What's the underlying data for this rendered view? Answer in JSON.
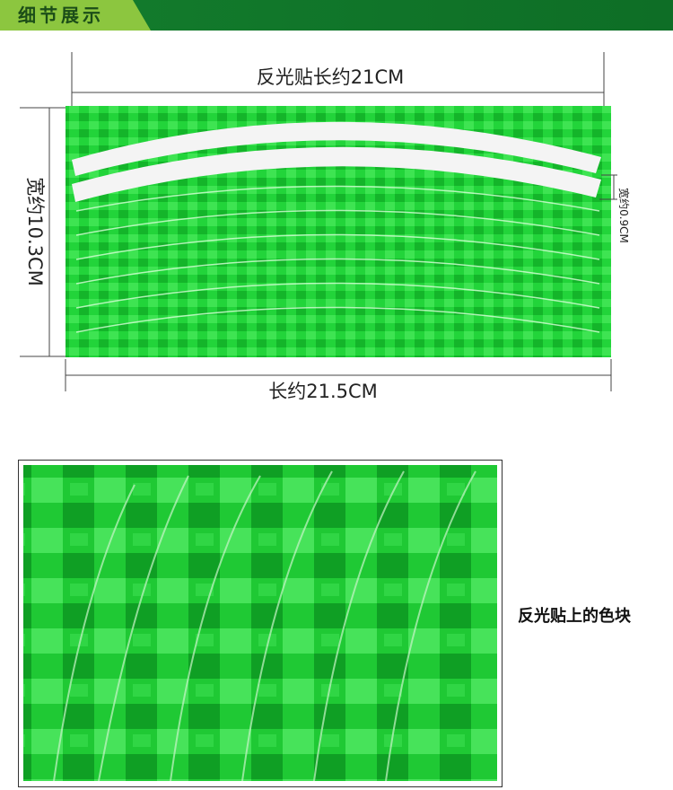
{
  "header": {
    "title": "细节展示"
  },
  "dimensions": {
    "top_length": "反光贴长约21CM",
    "left_width": "宽约10.3CM",
    "strip_width": "宽约0.9CM",
    "bottom_length": "长约21.5CM"
  },
  "detail": {
    "caption": "反光贴上的色块"
  }
}
